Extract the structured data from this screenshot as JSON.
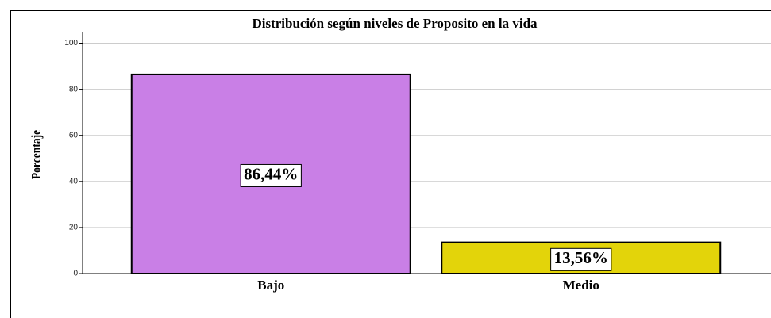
{
  "chart_data": {
    "type": "bar",
    "title": "Distribución según niveles de Proposito en la vida",
    "y_label": "Porcentaje",
    "categories": [
      "Bajo",
      "Medio"
    ],
    "values": [
      86.44,
      13.56
    ],
    "value_labels": [
      "86,44%",
      "13,56%"
    ],
    "colors": [
      "#c97fe6",
      "#e3d40a"
    ],
    "ylim": [
      0,
      105
    ],
    "yticks": [
      0,
      20,
      40,
      60,
      80,
      100
    ],
    "grid": true
  }
}
